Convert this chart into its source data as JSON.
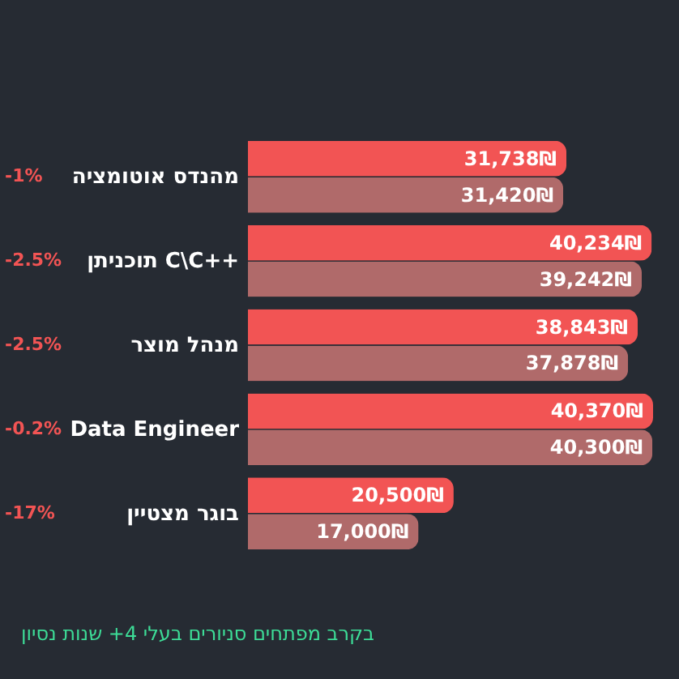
{
  "chart_data": {
    "type": "bar",
    "orientation": "horizontal",
    "categories": [
      "מהנדס אוטומציה",
      "תוכניתן C\\C++",
      "מנהל מוצר",
      "Data Engineer",
      "בוגר מצטיין"
    ],
    "series": [
      {
        "color": "#f25454",
        "values": [
          31738,
          40234,
          38843,
          40370,
          20500
        ],
        "value_labels": [
          "31,738₪",
          "40,234₪",
          "38,843₪",
          "40,370₪",
          "20,500₪"
        ]
      },
      {
        "color": "#b06a6a",
        "values": [
          31420,
          39242,
          37878,
          40300,
          17000
        ],
        "value_labels": [
          "31,420₪",
          "39,242₪",
          "37,878₪",
          "40,300₪",
          "17,000₪"
        ]
      }
    ],
    "annotations": [
      "-1%",
      "-2.5%",
      "-2.5%",
      "-0.2%",
      "-17%",
      "בקרב מפתחים סניורים בעלי 4+ שנות נסיון"
    ]
  }
}
